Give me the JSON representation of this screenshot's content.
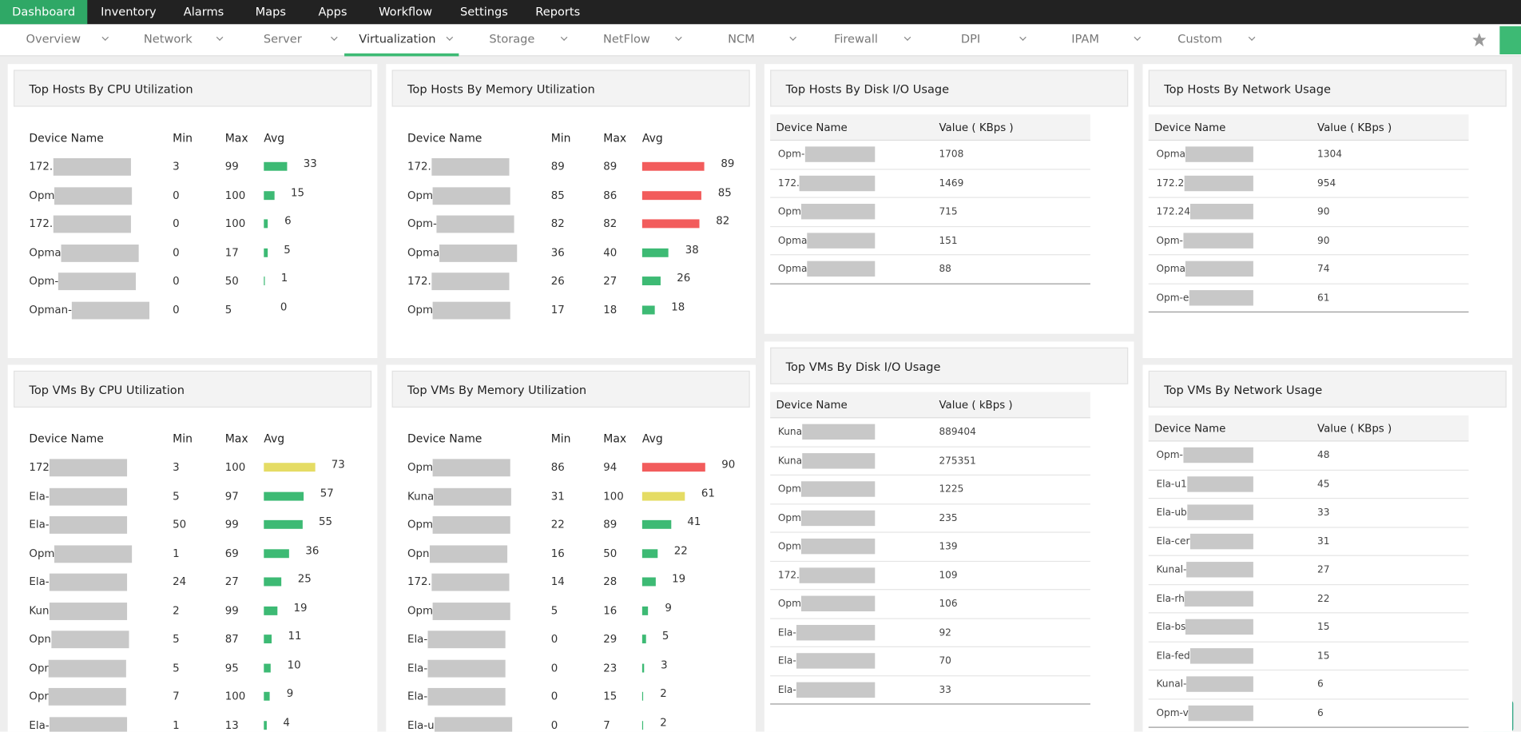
{
  "nav": {
    "items": [
      "Dashboard",
      "Inventory",
      "Alarms",
      "Maps",
      "Apps",
      "Workflow",
      "Settings",
      "Reports"
    ],
    "active": 0
  },
  "subnav": {
    "items": [
      "Overview",
      "Network",
      "Server",
      "Virtualization",
      "Storage",
      "NetFlow",
      "NCM",
      "Firewall",
      "DPI",
      "IPAM",
      "Custom"
    ],
    "active": 3
  },
  "widgets": [
    {
      "title": "Top Hosts By CPU Utilization",
      "columns": [
        "Device Name",
        "Min",
        "Max",
        "Avg"
      ],
      "rows": [
        {
          "name": "172.",
          "min": 3,
          "max": 99,
          "avg": 33,
          "color": "#3dba74"
        },
        {
          "name": "Opm",
          "min": 0,
          "max": 100,
          "avg": 15,
          "color": "#3dba74"
        },
        {
          "name": "172.",
          "min": 0,
          "max": 100,
          "avg": 6,
          "color": "#3dba74"
        },
        {
          "name": "Opma",
          "min": 0,
          "max": 17,
          "avg": 5,
          "color": "#3dba74"
        },
        {
          "name": "Opm-",
          "min": 0,
          "max": 50,
          "avg": 1,
          "color": "#3dba74"
        },
        {
          "name": "Opman-",
          "min": 0,
          "max": 5,
          "avg": 0,
          "color": "#3dba74"
        }
      ]
    },
    {
      "title": "Top Hosts By Memory Utilization",
      "columns": [
        "Device Name",
        "Min",
        "Max",
        "Avg"
      ],
      "rows": [
        {
          "name": "172.",
          "min": 89,
          "max": 89,
          "avg": 89,
          "color": "#f25c5c"
        },
        {
          "name": "Opm",
          "min": 85,
          "max": 86,
          "avg": 85,
          "color": "#f25c5c"
        },
        {
          "name": "Opm-",
          "min": 82,
          "max": 82,
          "avg": 82,
          "color": "#f25c5c"
        },
        {
          "name": "Opma",
          "min": 36,
          "max": 40,
          "avg": 38,
          "color": "#3dba74"
        },
        {
          "name": "172.",
          "min": 26,
          "max": 27,
          "avg": 26,
          "color": "#3dba74"
        },
        {
          "name": "Opm",
          "min": 17,
          "max": 18,
          "avg": 18,
          "color": "#3dba74"
        }
      ]
    },
    {
      "title": "Top Hosts By Disk I/O Usage",
      "columns": [
        "Device Name",
        "Value ( KBps )"
      ],
      "rows": [
        {
          "name": "Opm-",
          "value": 1708
        },
        {
          "name": "172.",
          "value": 1469
        },
        {
          "name": "Opm",
          "value": 715
        },
        {
          "name": "Opma",
          "value": 151
        },
        {
          "name": "Opma",
          "value": 88
        }
      ]
    },
    {
      "title": "Top Hosts By Network Usage",
      "columns": [
        "Device Name",
        "Value ( KBps )"
      ],
      "rows": [
        {
          "name": "Opma",
          "value": 1304
        },
        {
          "name": "172.2",
          "value": 954
        },
        {
          "name": "172.24",
          "value": 90
        },
        {
          "name": "Opm-",
          "value": 90
        },
        {
          "name": "Opma",
          "value": 74
        },
        {
          "name": "Opm-e",
          "value": 61
        }
      ]
    },
    {
      "title": "Top VMs By CPU Utilization",
      "columns": [
        "Device Name",
        "Min",
        "Max",
        "Avg"
      ],
      "rows": [
        {
          "name": "172",
          "min": 3,
          "max": 100,
          "avg": 73,
          "color": "#e5dc64"
        },
        {
          "name": "Ela-",
          "min": 5,
          "max": 97,
          "avg": 57,
          "color": "#3dba74"
        },
        {
          "name": "Ela-",
          "min": 50,
          "max": 99,
          "avg": 55,
          "color": "#3dba74"
        },
        {
          "name": "Opm",
          "min": 1,
          "max": 69,
          "avg": 36,
          "color": "#3dba74"
        },
        {
          "name": "Ela-",
          "min": 24,
          "max": 27,
          "avg": 25,
          "color": "#3dba74"
        },
        {
          "name": "Kun",
          "min": 2,
          "max": 99,
          "avg": 19,
          "color": "#3dba74"
        },
        {
          "name": "Opn",
          "min": 5,
          "max": 87,
          "avg": 11,
          "color": "#3dba74"
        },
        {
          "name": "Opr",
          "min": 5,
          "max": 95,
          "avg": 10,
          "color": "#3dba74"
        },
        {
          "name": "Opr",
          "min": 7,
          "max": 100,
          "avg": 9,
          "color": "#3dba74"
        },
        {
          "name": "Ela-",
          "min": 1,
          "max": 13,
          "avg": 4,
          "color": "#3dba74"
        }
      ]
    },
    {
      "title": "Top VMs By Memory Utilization",
      "columns": [
        "Device Name",
        "Min",
        "Max",
        "Avg"
      ],
      "rows": [
        {
          "name": "Opm",
          "min": 86,
          "max": 94,
          "avg": 90,
          "color": "#f25c5c"
        },
        {
          "name": "Kuna",
          "min": 31,
          "max": 100,
          "avg": 61,
          "color": "#e5dc64"
        },
        {
          "name": "Opm",
          "min": 22,
          "max": 89,
          "avg": 41,
          "color": "#3dba74"
        },
        {
          "name": "Opn",
          "min": 16,
          "max": 50,
          "avg": 22,
          "color": "#3dba74"
        },
        {
          "name": "172.",
          "min": 14,
          "max": 28,
          "avg": 19,
          "color": "#3dba74"
        },
        {
          "name": "Opm",
          "min": 5,
          "max": 16,
          "avg": 9,
          "color": "#3dba74"
        },
        {
          "name": "Ela-",
          "min": 0,
          "max": 29,
          "avg": 5,
          "color": "#3dba74"
        },
        {
          "name": "Ela-",
          "min": 0,
          "max": 23,
          "avg": 3,
          "color": "#3dba74"
        },
        {
          "name": "Ela-",
          "min": 0,
          "max": 15,
          "avg": 2,
          "color": "#3dba74"
        },
        {
          "name": "Ela-u",
          "min": 0,
          "max": 7,
          "avg": 2,
          "color": "#3dba74"
        }
      ]
    },
    {
      "title": "Top VMs By Disk I/O Usage",
      "columns": [
        "Device Name",
        "Value ( kBps )"
      ],
      "rows": [
        {
          "name": "Kuna",
          "value": 889404
        },
        {
          "name": "Kuna",
          "value": 275351
        },
        {
          "name": "Opm",
          "value": 1225
        },
        {
          "name": "Opm",
          "value": 235
        },
        {
          "name": "Opm",
          "value": 139
        },
        {
          "name": "172.",
          "value": 109
        },
        {
          "name": "Opm",
          "value": 106
        },
        {
          "name": "Ela-",
          "value": 92
        },
        {
          "name": "Ela-",
          "value": 70
        },
        {
          "name": "Ela-",
          "value": 33
        }
      ]
    },
    {
      "title": "Top VMs By Network Usage",
      "columns": [
        "Device Name",
        "Value ( KBps )"
      ],
      "rows": [
        {
          "name": "Opm-",
          "value": 48
        },
        {
          "name": "Ela-u1",
          "value": 45
        },
        {
          "name": "Ela-ub",
          "value": 33
        },
        {
          "name": "Ela-cer",
          "value": 31
        },
        {
          "name": "Kunal-",
          "value": 27
        },
        {
          "name": "Ela-rh",
          "value": 22
        },
        {
          "name": "Ela-bs",
          "value": 15
        },
        {
          "name": "Ela-fed",
          "value": 15
        },
        {
          "name": "Kunal-",
          "value": 6
        },
        {
          "name": "Opm-v",
          "value": 6
        }
      ]
    }
  ]
}
